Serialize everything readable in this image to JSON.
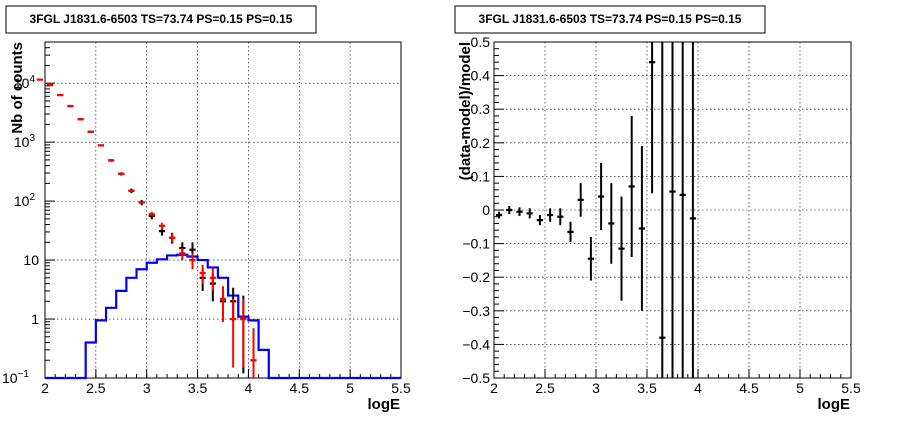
{
  "chart_data": [
    {
      "type": "histogram",
      "title": "3FGL J1831.6-6503 TS=73.74 PS=0.15 PS=0.15",
      "xlabel": "logE",
      "ylabel": "Nb of counts",
      "xlim": [
        2,
        5.5
      ],
      "ylim": [
        0.1,
        50000
      ],
      "yscale": "log",
      "grid": true,
      "xticks": [
        "2",
        "2.5",
        "3",
        "3.5",
        "4",
        "4.5",
        "5",
        "5.5"
      ],
      "yticks": [
        {
          "v": 0.1,
          "base": "10",
          "exp": "−1",
          "plain": ""
        },
        {
          "v": 1,
          "base": "",
          "exp": "",
          "plain": "1"
        },
        {
          "v": 10,
          "base": "",
          "exp": "",
          "plain": "10"
        },
        {
          "v": 100,
          "base": "10",
          "exp": "2",
          "plain": ""
        },
        {
          "v": 1000,
          "base": "10",
          "exp": "3",
          "plain": ""
        },
        {
          "v": 10000,
          "base": "10",
          "exp": "4",
          "plain": ""
        }
      ],
      "bin_width": 0.1,
      "series": [
        {
          "color": "#0000ff",
          "kind": "step",
          "edges": [
            2.0,
            2.1,
            2.2,
            2.3,
            2.4,
            2.5,
            2.6,
            2.7,
            2.8,
            2.9,
            3.0,
            3.1,
            3.2,
            3.3,
            3.4,
            3.5,
            3.6,
            3.7,
            3.8,
            3.9,
            4.0,
            4.1,
            4.2,
            4.3,
            5.5
          ],
          "values": [
            0.1,
            0.1,
            0.1,
            0.1,
            0.4,
            0.95,
            1.55,
            3.0,
            5.0,
            7.0,
            9.0,
            10.3,
            12.0,
            12.3,
            11.5,
            10.0,
            7.5,
            5.0,
            2.5,
            1.1,
            0.95,
            0.3,
            0.1,
            0.1
          ]
        },
        {
          "color": "#000000",
          "kind": "data",
          "points": [
            {
              "x": 2.05,
              "y": 9300,
              "lo": 9100,
              "hi": 9500
            },
            {
              "x": 2.15,
              "y": 6300,
              "lo": 6150,
              "hi": 6450
            },
            {
              "x": 2.25,
              "y": 4100,
              "lo": 4000,
              "hi": 4200
            },
            {
              "x": 2.35,
              "y": 2450,
              "lo": 2390,
              "hi": 2510
            },
            {
              "x": 2.45,
              "y": 1500,
              "lo": 1450,
              "hi": 1550
            },
            {
              "x": 2.55,
              "y": 880,
              "lo": 850,
              "hi": 910
            },
            {
              "x": 2.65,
              "y": 490,
              "lo": 465,
              "hi": 515
            },
            {
              "x": 2.75,
              "y": 290,
              "lo": 272,
              "hi": 308
            },
            {
              "x": 2.85,
              "y": 150,
              "lo": 137,
              "hi": 163
            },
            {
              "x": 2.95,
              "y": 95,
              "lo": 85,
              "hi": 105
            },
            {
              "x": 3.05,
              "y": 56,
              "lo": 49,
              "hi": 63
            },
            {
              "x": 3.15,
              "y": 31,
              "lo": 26,
              "hi": 37
            },
            {
              "x": 3.25,
              "y": 24,
              "lo": 19,
              "hi": 29
            },
            {
              "x": 3.35,
              "y": 16,
              "lo": 12,
              "hi": 20
            },
            {
              "x": 3.45,
              "y": 15,
              "lo": 11,
              "hi": 20
            },
            {
              "x": 3.55,
              "y": 5.0,
              "lo": 3,
              "hi": 7
            },
            {
              "x": 3.65,
              "y": 4.0,
              "lo": 2,
              "hi": 6
            },
            {
              "x": 3.75,
              "y": 2.0,
              "lo": 0.9,
              "hi": 3.4
            },
            {
              "x": 3.85,
              "y": 2.0,
              "lo": 0.9,
              "hi": 3.4
            },
            {
              "x": 3.95,
              "y": 1.0,
              "lo": 0.12,
              "hi": 2.5
            }
          ]
        },
        {
          "color": "#ff0000",
          "kind": "model",
          "points": [
            {
              "x": 1.95,
              "y": 11500,
              "lo": 11500,
              "hi": 11500
            },
            {
              "x": 2.05,
              "y": 9300,
              "lo": 9300,
              "hi": 9300
            },
            {
              "x": 2.15,
              "y": 6300,
              "lo": 6300,
              "hi": 6300
            },
            {
              "x": 2.25,
              "y": 4100,
              "lo": 4100,
              "hi": 4100
            },
            {
              "x": 2.35,
              "y": 2450,
              "lo": 2450,
              "hi": 2450
            },
            {
              "x": 2.45,
              "y": 1500,
              "lo": 1500,
              "hi": 1500
            },
            {
              "x": 2.55,
              "y": 880,
              "lo": 880,
              "hi": 880
            },
            {
              "x": 2.65,
              "y": 490,
              "lo": 490,
              "hi": 490
            },
            {
              "x": 2.75,
              "y": 290,
              "lo": 290,
              "hi": 290
            },
            {
              "x": 2.85,
              "y": 150,
              "lo": 150,
              "hi": 150
            },
            {
              "x": 2.95,
              "y": 95,
              "lo": 95,
              "hi": 95
            },
            {
              "x": 3.05,
              "y": 60,
              "lo": 55,
              "hi": 66
            },
            {
              "x": 3.15,
              "y": 38,
              "lo": 33,
              "hi": 43
            },
            {
              "x": 3.25,
              "y": 24,
              "lo": 20,
              "hi": 28
            },
            {
              "x": 3.35,
              "y": 13,
              "lo": 10,
              "hi": 16
            },
            {
              "x": 3.45,
              "y": 10,
              "lo": 7,
              "hi": 13
            },
            {
              "x": 3.55,
              "y": 6.0,
              "lo": 3.9,
              "hi": 8.3
            },
            {
              "x": 3.65,
              "y": 5.0,
              "lo": 3.0,
              "hi": 7.3
            },
            {
              "x": 3.75,
              "y": 2.2,
              "lo": 0.9,
              "hi": 3.6
            },
            {
              "x": 3.85,
              "y": 1.0,
              "lo": 0.15,
              "hi": 2.2
            },
            {
              "x": 3.95,
              "y": 1.0,
              "lo": 0.15,
              "hi": 2.2
            },
            {
              "x": 4.05,
              "y": 0.2,
              "lo": 0.1,
              "hi": 0.7
            }
          ]
        }
      ]
    },
    {
      "type": "scatter",
      "title": "3FGL J1831.6-6503 TS=73.74 PS=0.15 PS=0.15",
      "xlabel": "logE",
      "ylabel": "(data-model)/model",
      "xlim": [
        2,
        5.5
      ],
      "ylim": [
        -0.5,
        0.5
      ],
      "grid": true,
      "xticks": [
        "2",
        "2.5",
        "3",
        "3.5",
        "4",
        "4.5",
        "5",
        "5.5"
      ],
      "yticks": [
        "−0.5",
        "−0.4",
        "−0.3",
        "−0.2",
        "−0.1",
        "0",
        "0.1",
        "0.2",
        "0.3",
        "0.4",
        "0.5"
      ],
      "bin_width": 0.1,
      "series": [
        {
          "color": "#000000",
          "points": [
            {
              "x": 2.05,
              "y": -0.015,
              "lo": -0.025,
              "hi": -0.005
            },
            {
              "x": 2.15,
              "y": 0.0,
              "lo": -0.012,
              "hi": 0.012
            },
            {
              "x": 2.25,
              "y": -0.005,
              "lo": -0.018,
              "hi": 0.008
            },
            {
              "x": 2.35,
              "y": -0.01,
              "lo": -0.025,
              "hi": 0.005
            },
            {
              "x": 2.45,
              "y": -0.03,
              "lo": -0.045,
              "hi": -0.015
            },
            {
              "x": 2.55,
              "y": -0.015,
              "lo": -0.035,
              "hi": 0.005
            },
            {
              "x": 2.65,
              "y": -0.02,
              "lo": -0.045,
              "hi": 0.005
            },
            {
              "x": 2.75,
              "y": -0.065,
              "lo": -0.095,
              "hi": -0.035
            },
            {
              "x": 2.85,
              "y": 0.03,
              "lo": -0.02,
              "hi": 0.08
            },
            {
              "x": 2.95,
              "y": -0.145,
              "lo": -0.21,
              "hi": -0.08
            },
            {
              "x": 3.05,
              "y": 0.04,
              "lo": -0.06,
              "hi": 0.14
            },
            {
              "x": 3.15,
              "y": -0.04,
              "lo": -0.16,
              "hi": 0.08
            },
            {
              "x": 3.25,
              "y": -0.115,
              "lo": -0.27,
              "hi": 0.04
            },
            {
              "x": 3.35,
              "y": 0.07,
              "lo": -0.14,
              "hi": 0.28
            },
            {
              "x": 3.45,
              "y": -0.055,
              "lo": -0.3,
              "hi": 0.19
            },
            {
              "x": 3.55,
              "y": 0.44,
              "lo": 0.05,
              "hi": 0.5
            },
            {
              "x": 3.65,
              "y": -0.38,
              "lo": -0.5,
              "hi": 0.5
            },
            {
              "x": 3.75,
              "y": 0.055,
              "lo": -0.5,
              "hi": 0.5
            },
            {
              "x": 3.85,
              "y": 0.045,
              "lo": -0.5,
              "hi": 0.5
            },
            {
              "x": 3.95,
              "y": -0.025,
              "lo": -0.5,
              "hi": 0.5
            }
          ]
        }
      ]
    }
  ]
}
